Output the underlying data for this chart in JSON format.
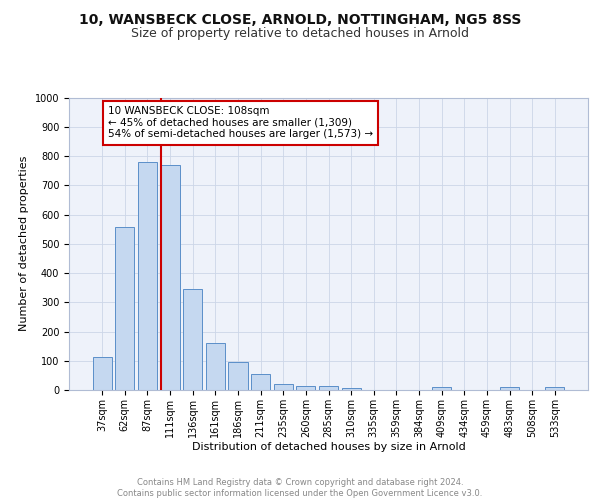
{
  "title": "10, WANSBECK CLOSE, ARNOLD, NOTTINGHAM, NG5 8SS",
  "subtitle": "Size of property relative to detached houses in Arnold",
  "xlabel": "Distribution of detached houses by size in Arnold",
  "ylabel": "Number of detached properties",
  "categories": [
    "37sqm",
    "62sqm",
    "87sqm",
    "111sqm",
    "136sqm",
    "161sqm",
    "186sqm",
    "211sqm",
    "235sqm",
    "260sqm",
    "285sqm",
    "310sqm",
    "335sqm",
    "359sqm",
    "384sqm",
    "409sqm",
    "434sqm",
    "459sqm",
    "483sqm",
    "508sqm",
    "533sqm"
  ],
  "values": [
    113,
    557,
    779,
    769,
    346,
    160,
    97,
    53,
    22,
    14,
    14,
    6,
    0,
    0,
    0,
    9,
    0,
    0,
    9,
    0,
    9
  ],
  "bar_color": "#c5d8f0",
  "bar_edge_color": "#5b8fc9",
  "vline_color": "#cc0000",
  "vline_x_index": 2.6,
  "annotation_text": "10 WANSBECK CLOSE: 108sqm\n← 45% of detached houses are smaller (1,309)\n54% of semi-detached houses are larger (1,573) →",
  "annotation_box_edge_color": "#cc0000",
  "annotation_box_face_color": "#ffffff",
  "ylim": [
    0,
    1000
  ],
  "yticks": [
    0,
    100,
    200,
    300,
    400,
    500,
    600,
    700,
    800,
    900,
    1000
  ],
  "grid_color": "#ccd6e8",
  "background_color": "#eef2fa",
  "footer_text": "Contains HM Land Registry data © Crown copyright and database right 2024.\nContains public sector information licensed under the Open Government Licence v3.0.",
  "title_fontsize": 10,
  "subtitle_fontsize": 9,
  "xlabel_fontsize": 8,
  "ylabel_fontsize": 8,
  "tick_fontsize": 7,
  "annotation_fontsize": 7.5,
  "footer_fontsize": 6
}
